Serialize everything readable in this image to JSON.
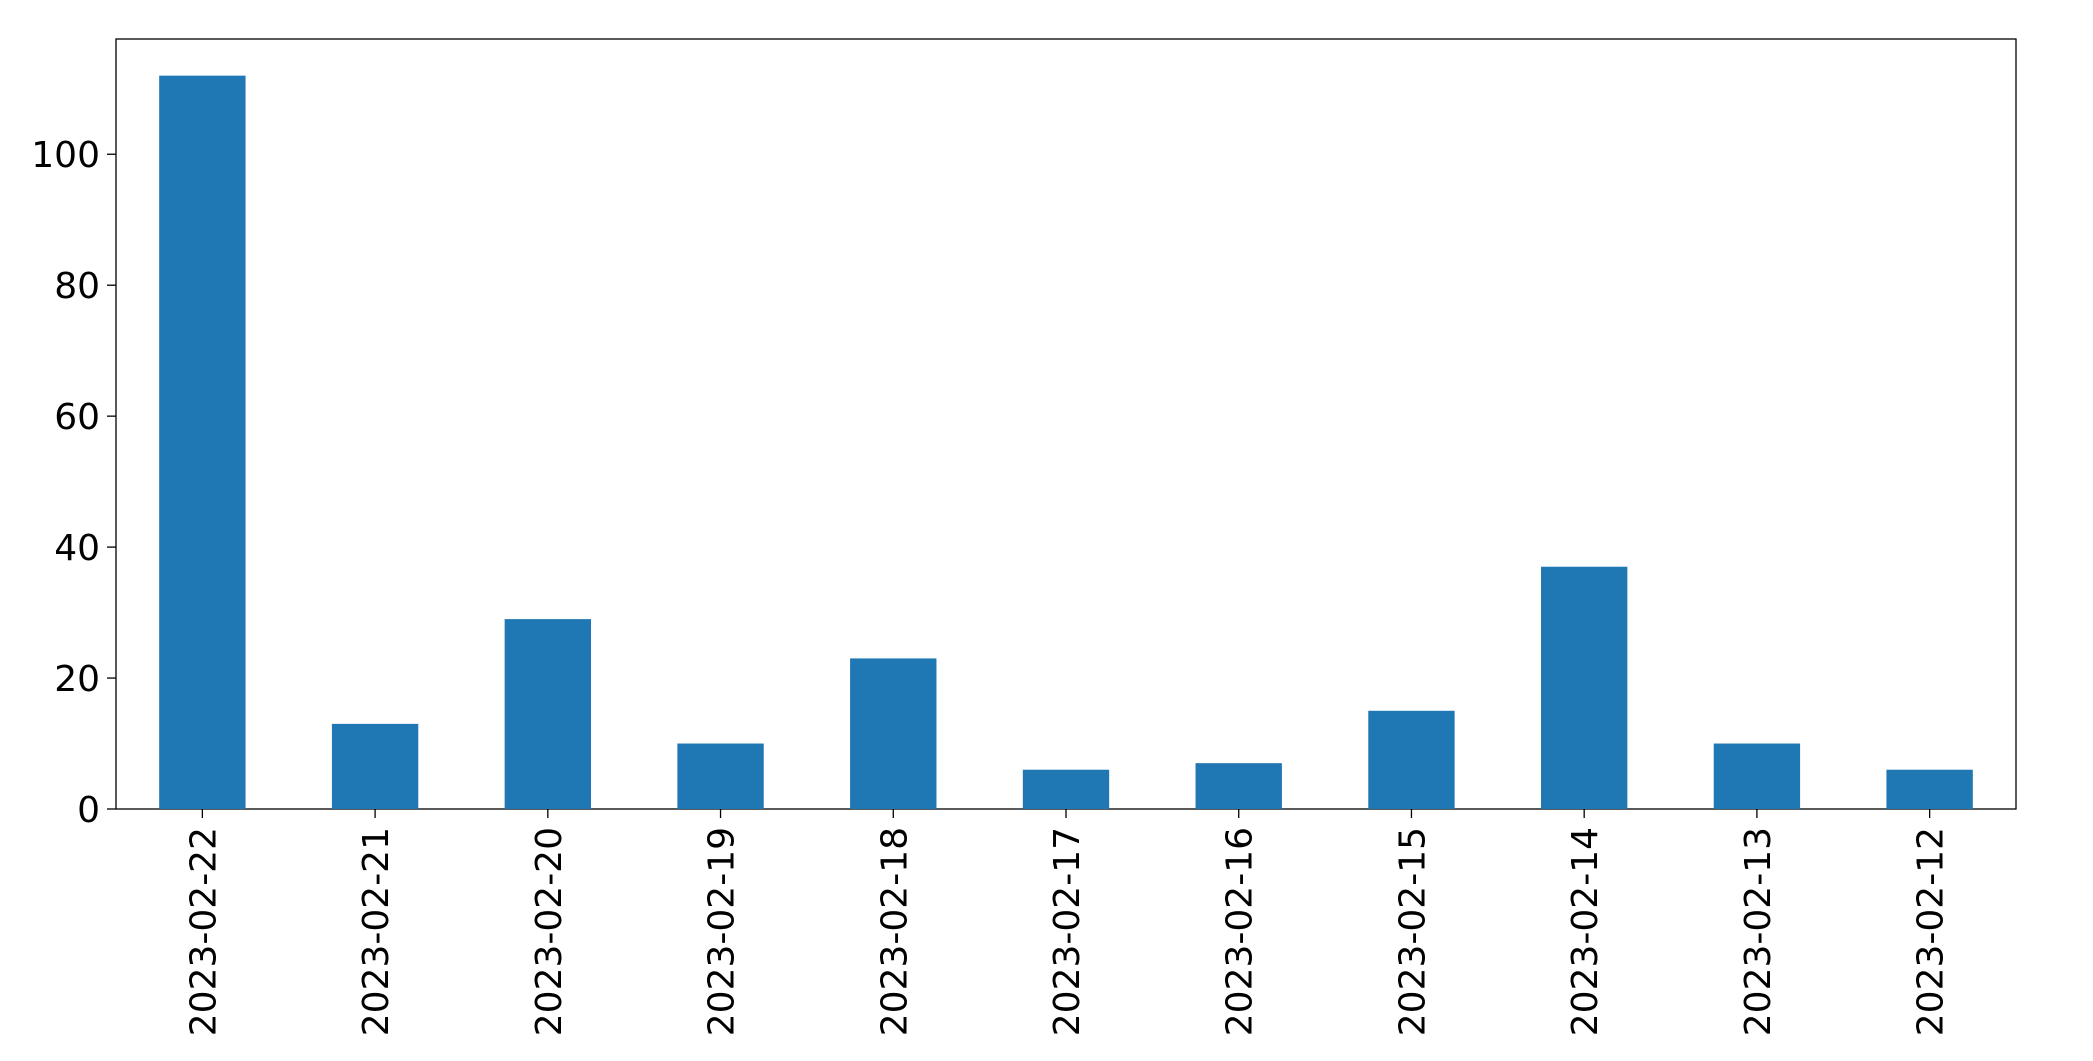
{
  "chart_data": {
    "type": "bar",
    "categories": [
      "2023-02-22",
      "2023-02-21",
      "2023-02-20",
      "2023-02-19",
      "2023-02-18",
      "2023-02-17",
      "2023-02-16",
      "2023-02-15",
      "2023-02-14",
      "2023-02-13",
      "2023-02-12"
    ],
    "values": [
      112,
      13,
      29,
      10,
      23,
      6,
      7,
      15,
      37,
      10,
      6
    ],
    "color": "#1f77b4",
    "ylim": [
      0,
      117.6
    ],
    "yticks": [
      0,
      20,
      40,
      60,
      80,
      100
    ],
    "grid": false
  }
}
